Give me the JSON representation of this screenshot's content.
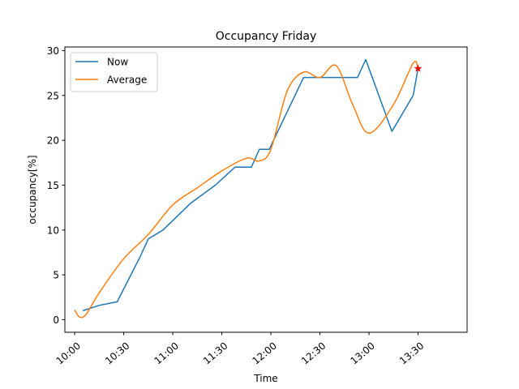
{
  "chart_data": {
    "type": "line",
    "title": "Occupancy Friday",
    "xlabel": "Time",
    "ylabel": "occupancy[%]",
    "x_ticks": [
      "10:00",
      "10:30",
      "11:00",
      "11:30",
      "12:00",
      "12:30",
      "13:00",
      "13:30"
    ],
    "y_ticks": [
      0,
      5,
      10,
      15,
      20,
      25,
      30
    ],
    "xlim": [
      "09:54",
      "14:00"
    ],
    "ylim": [
      -1.4,
      30.4
    ],
    "legend_position": "top-left",
    "grid": false,
    "series": [
      {
        "name": "Now",
        "color": "#1f77b4",
        "points": [
          [
            "10:05",
            1
          ],
          [
            "10:15",
            1.6
          ],
          [
            "10:26",
            2
          ],
          [
            "10:40",
            7
          ],
          [
            "10:45",
            9
          ],
          [
            "10:54",
            10
          ],
          [
            "11:11",
            13
          ],
          [
            "11:26",
            15
          ],
          [
            "11:38",
            17
          ],
          [
            "11:48",
            17
          ],
          [
            "11:53",
            19
          ],
          [
            "11:59",
            19
          ],
          [
            "12:20",
            27
          ],
          [
            "12:47",
            27
          ],
          [
            "12:53",
            27
          ],
          [
            "12:58",
            29
          ],
          [
            "13:14",
            21
          ],
          [
            "13:27",
            25
          ],
          [
            "13:30",
            28
          ]
        ]
      },
      {
        "name": "Average",
        "color": "#ff7f0e",
        "points": [
          [
            "10:00",
            1.1
          ],
          [
            "10:03",
            0.3
          ],
          [
            "10:07",
            0.6
          ],
          [
            "10:15",
            3
          ],
          [
            "10:30",
            6.8
          ],
          [
            "10:45",
            9.5
          ],
          [
            "11:00",
            12.8
          ],
          [
            "11:15",
            14.7
          ],
          [
            "11:30",
            16.6
          ],
          [
            "11:45",
            18
          ],
          [
            "11:53",
            17.7
          ],
          [
            "12:00",
            19
          ],
          [
            "12:10",
            25.5
          ],
          [
            "12:20",
            27.6
          ],
          [
            "12:30",
            27
          ],
          [
            "12:40",
            28.3
          ],
          [
            "12:50",
            24
          ],
          [
            "13:00",
            20.8
          ],
          [
            "13:15",
            24
          ],
          [
            "13:27",
            28.6
          ],
          [
            "13:30",
            28
          ]
        ]
      }
    ],
    "marker": {
      "x": "13:30",
      "y": 28,
      "color": "#ff0000",
      "shape": "star"
    }
  }
}
